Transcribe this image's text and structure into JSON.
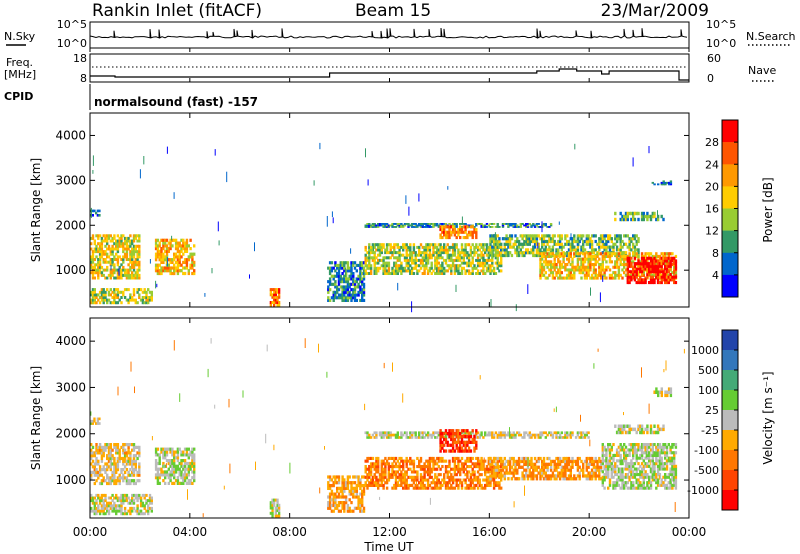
{
  "header": {
    "station": "Rankin Inlet (fitACF)",
    "beam": "Beam 15",
    "date": "23/Mar/2009"
  },
  "strip1": {
    "left_label": "N.Sky",
    "right_label": "N.Search",
    "left_ticks": [
      "10^5",
      "10^0"
    ],
    "right_ticks": [
      "10^5",
      "10^0"
    ]
  },
  "strip2": {
    "left_label_line1": "Freq.",
    "left_label_line2": "[MHz]",
    "right_label": "Nave",
    "left_ticks": [
      "18",
      "8"
    ],
    "right_ticks": [
      "60",
      "0"
    ]
  },
  "strip3": {
    "left_label": "CPID",
    "program": "normalsound (fast) -157"
  },
  "panels": {
    "power": {
      "ylabel": "Slant Range [km]",
      "yticks": [
        "4000",
        "3000",
        "2000",
        "1000"
      ],
      "cbar_label": "Power [dB]",
      "cbar_ticks": [
        "28",
        "24",
        "20",
        "16",
        "12",
        "8",
        "4"
      ],
      "cbar_colors": [
        "#ff0000",
        "#ff5500",
        "#ff9900",
        "#ffcc00",
        "#99cc33",
        "#339966",
        "#0066cc",
        "#0000ff"
      ]
    },
    "velocity": {
      "ylabel": "Slant Range [km]",
      "yticks": [
        "4000",
        "3000",
        "2000",
        "1000"
      ],
      "cbar_label": "Velocity [m s⁻¹]",
      "cbar_ticks": [
        "1000",
        "500",
        "100",
        "25",
        "-25",
        "-100",
        "-500",
        "-1000"
      ],
      "cbar_colors": [
        "#2244aa",
        "#3377bb",
        "#44aa77",
        "#66cc33",
        "#bbbbbb",
        "#ffaa00",
        "#ff7700",
        "#ff4400",
        "#ff0000"
      ]
    }
  },
  "xaxis": {
    "label": "Time UT",
    "ticks": [
      "00:00",
      "04:00",
      "08:00",
      "12:00",
      "16:00",
      "20:00",
      "00:00"
    ]
  },
  "chart_data": [
    {
      "type": "heatmap",
      "title": "Power",
      "x_unit": "hours UT",
      "x_range": [
        0,
        24
      ],
      "y_range": [
        180,
        4500
      ],
      "z_label": "Power [dB]",
      "z_range": [
        0,
        30
      ],
      "regions": [
        {
          "t0": 0.0,
          "t1": 2.0,
          "r0": 800,
          "r1": 1800,
          "z": 16
        },
        {
          "t0": 0.0,
          "t1": 0.4,
          "r0": 2200,
          "r1": 2350,
          "z": 6
        },
        {
          "t0": 0.0,
          "t1": 2.5,
          "r0": 250,
          "r1": 600,
          "z": 14
        },
        {
          "t0": 2.6,
          "t1": 4.2,
          "r0": 900,
          "r1": 1700,
          "z": 18
        },
        {
          "t0": 7.2,
          "t1": 7.6,
          "r0": 200,
          "r1": 600,
          "z": 22
        },
        {
          "t0": 9.5,
          "t1": 11.0,
          "r0": 300,
          "r1": 1200,
          "z": 8
        },
        {
          "t0": 11.0,
          "t1": 16.5,
          "r0": 900,
          "r1": 1600,
          "z": 14
        },
        {
          "t0": 11.0,
          "t1": 18.5,
          "r0": 1950,
          "r1": 2050,
          "z": 8
        },
        {
          "t0": 14.0,
          "t1": 15.5,
          "r0": 1700,
          "r1": 2000,
          "z": 22
        },
        {
          "t0": 16.0,
          "t1": 22.0,
          "r0": 1300,
          "r1": 1800,
          "z": 12
        },
        {
          "t0": 18.0,
          "t1": 23.5,
          "r0": 800,
          "r1": 1400,
          "z": 18
        },
        {
          "t0": 21.5,
          "t1": 23.5,
          "r0": 700,
          "r1": 1300,
          "z": 28
        },
        {
          "t0": 22.5,
          "t1": 23.3,
          "r0": 2900,
          "r1": 3000,
          "z": 6
        },
        {
          "t0": 21.0,
          "t1": 23.0,
          "r0": 2100,
          "r1": 2300,
          "z": 10
        }
      ]
    },
    {
      "type": "heatmap",
      "title": "Velocity",
      "x_unit": "hours UT",
      "x_range": [
        0,
        24
      ],
      "y_range": [
        180,
        4500
      ],
      "z_label": "Velocity [m s-1]",
      "z_range": [
        -1000,
        1000
      ],
      "regions": [
        {
          "t0": 0.0,
          "t1": 2.0,
          "r0": 900,
          "r1": 1800,
          "z": -100
        },
        {
          "t0": 0.0,
          "t1": 0.4,
          "r0": 2200,
          "r1": 2350,
          "z": -100
        },
        {
          "t0": 0.0,
          "t1": 2.5,
          "r0": 250,
          "r1": 700,
          "z": 0
        },
        {
          "t0": 2.6,
          "t1": 4.2,
          "r0": 900,
          "r1": 1700,
          "z": 50
        },
        {
          "t0": 7.2,
          "t1": 7.6,
          "r0": 200,
          "r1": 600,
          "z": 50
        },
        {
          "t0": 9.5,
          "t1": 11.0,
          "r0": 300,
          "r1": 1100,
          "z": -300
        },
        {
          "t0": 11.0,
          "t1": 16.5,
          "r0": 800,
          "r1": 1500,
          "z": -400
        },
        {
          "t0": 11.0,
          "t1": 20.0,
          "r0": 1900,
          "r1": 2050,
          "z": 0
        },
        {
          "t0": 14.0,
          "t1": 15.5,
          "r0": 1600,
          "r1": 2100,
          "z": -700
        },
        {
          "t0": 16.0,
          "t1": 20.5,
          "r0": 1000,
          "r1": 1500,
          "z": -300
        },
        {
          "t0": 20.5,
          "t1": 23.5,
          "r0": 800,
          "r1": 1800,
          "z": 60
        },
        {
          "t0": 22.5,
          "t1": 23.3,
          "r0": 2800,
          "r1": 3000,
          "z": 0
        },
        {
          "t0": 21.0,
          "t1": 23.0,
          "r0": 2000,
          "r1": 2200,
          "z": 0
        }
      ]
    }
  ]
}
